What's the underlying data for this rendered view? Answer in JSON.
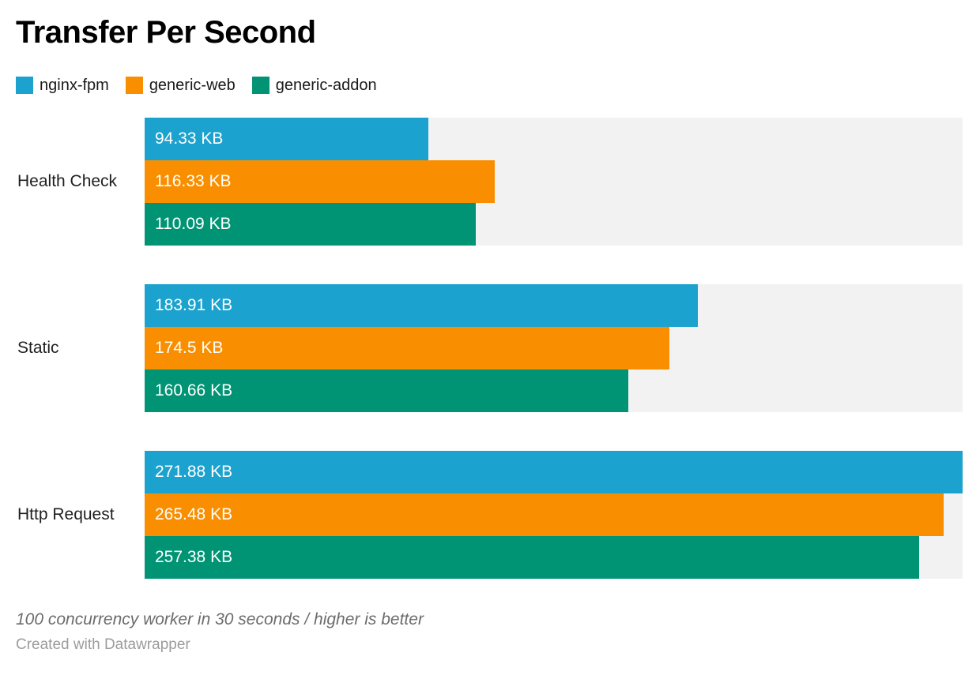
{
  "chart_data": {
    "type": "bar",
    "orientation": "horizontal",
    "title": "Transfer Per Second",
    "categories": [
      "Health Check",
      "Static",
      "Http Request"
    ],
    "series": [
      {
        "name": "nginx-fpm",
        "color": "#1CA2CE",
        "values": [
          94.33,
          183.91,
          271.88
        ],
        "labels": [
          "94.33 KB",
          "183.91 KB",
          "271.88 KB"
        ]
      },
      {
        "name": "generic-web",
        "color": "#F98F00",
        "values": [
          116.33,
          174.5,
          265.48
        ],
        "labels": [
          "116.33 KB",
          "174.5 KB",
          "265.48 KB"
        ]
      },
      {
        "name": "generic-addon",
        "color": "#009475",
        "values": [
          110.09,
          160.66,
          257.38
        ],
        "labels": [
          "110.09 KB",
          "160.66 KB",
          "257.38 KB"
        ]
      }
    ],
    "axis_max": 271.88,
    "unit": "KB",
    "value_labels_inside_bars": true,
    "track_color": "#F2F2F2",
    "legend_position": "top",
    "grid": false
  },
  "footer": {
    "note": "100 concurrency worker in 30 seconds / higher is better",
    "byline": "Created with Datawrapper"
  }
}
